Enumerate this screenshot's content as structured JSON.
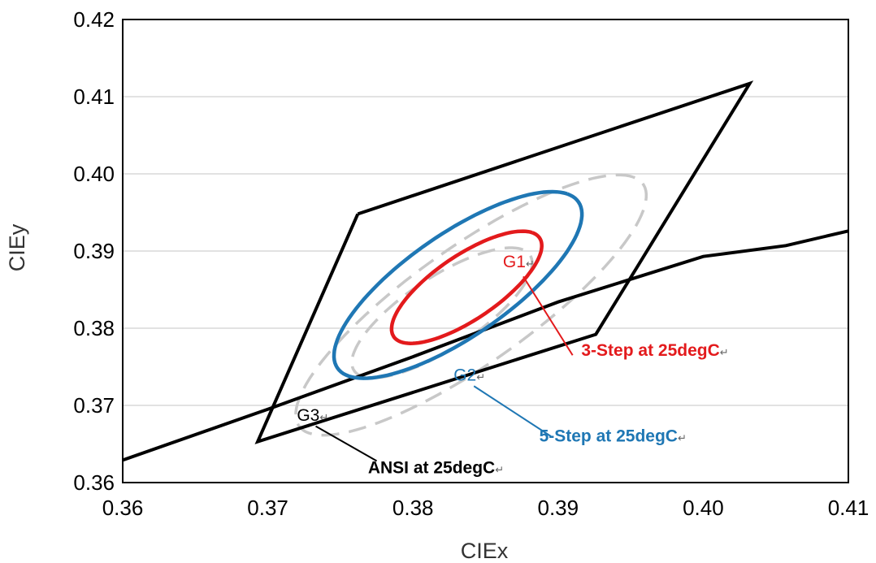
{
  "chart_data": {
    "type": "line",
    "xlabel": "CIEx",
    "ylabel": "CIEy",
    "xlim": [
      0.36,
      0.41
    ],
    "ylim": [
      0.36,
      0.42
    ],
    "x_ticks": [
      "0.36",
      "0.37",
      "0.38",
      "0.39",
      "0.40",
      "0.41"
    ],
    "y_ticks": [
      "0.36",
      "0.37",
      "0.38",
      "0.39",
      "0.40",
      "0.41",
      "0.42"
    ],
    "grid": "horizontal",
    "colors": {
      "ansi": "#000000",
      "g1": "#e31a1c",
      "g2": "#1f77b4",
      "g3": "#c8c8c8"
    },
    "ansi_quadrilateral": [
      [
        0.3762,
        0.3948
      ],
      [
        0.4032,
        0.4117
      ],
      [
        0.3926,
        0.3792
      ],
      [
        0.3693,
        0.3653
      ],
      [
        0.3762,
        0.3948
      ]
    ],
    "blackbody_locus": [
      [
        0.36,
        0.3629
      ],
      [
        0.37,
        0.3695
      ],
      [
        0.38,
        0.3763
      ],
      [
        0.39,
        0.3834
      ],
      [
        0.4,
        0.3893
      ],
      [
        0.4057,
        0.3907
      ],
      [
        0.41,
        0.3926
      ]
    ],
    "ellipses": [
      {
        "cx": 0.3837,
        "cy": 0.3853,
        "a": 0.0084,
        "b": 0.003,
        "angle_deg": 57.5,
        "color": "#e31a1c",
        "style": "solid"
      },
      {
        "cx": 0.3831,
        "cy": 0.3856,
        "a": 0.014,
        "b": 0.0048,
        "angle_deg": 57.5,
        "color": "#1f77b4",
        "style": "solid"
      },
      {
        "cx": 0.382,
        "cy": 0.382,
        "a": 0.0099,
        "b": 0.0034,
        "angle_deg": 56,
        "color": "#c8c8c8",
        "style": "dashed"
      },
      {
        "cx": 0.384,
        "cy": 0.383,
        "a": 0.02,
        "b": 0.0055,
        "angle_deg": 56,
        "color": "#c8c8c8",
        "style": "dashed"
      }
    ],
    "annotations": [
      {
        "label": "G1",
        "at": [
          0.3862,
          0.3879
        ],
        "color": "#e31a1c",
        "bold": false
      },
      {
        "label": "G2",
        "at": [
          0.3828,
          0.3732
        ],
        "color": "#1f77b4",
        "bold": false
      },
      {
        "label": "G3",
        "at": [
          0.372,
          0.368
        ],
        "color": "#000000",
        "bold": false
      },
      {
        "label": "3-Step at 25degC",
        "at": [
          0.3916,
          0.3764
        ],
        "color": "#e31a1c",
        "bold": true,
        "leader_from": [
          0.3876,
          0.3867
        ],
        "leader_to": [
          0.391,
          0.3765
        ]
      },
      {
        "label": "5-Step at 25degC",
        "at": [
          0.3887,
          0.3653
        ],
        "color": "#1f77b4",
        "bold": true,
        "leader_from": [
          0.3842,
          0.3725
        ],
        "leader_to": [
          0.3895,
          0.366
        ]
      },
      {
        "label": "ANSI at 25degC",
        "at": [
          0.3769,
          0.3612
        ],
        "color": "#000000",
        "bold": true,
        "leader_from": [
          0.3733,
          0.3673
        ],
        "leader_to": [
          0.3775,
          0.3628
        ]
      }
    ],
    "return_glyph": "↵"
  }
}
